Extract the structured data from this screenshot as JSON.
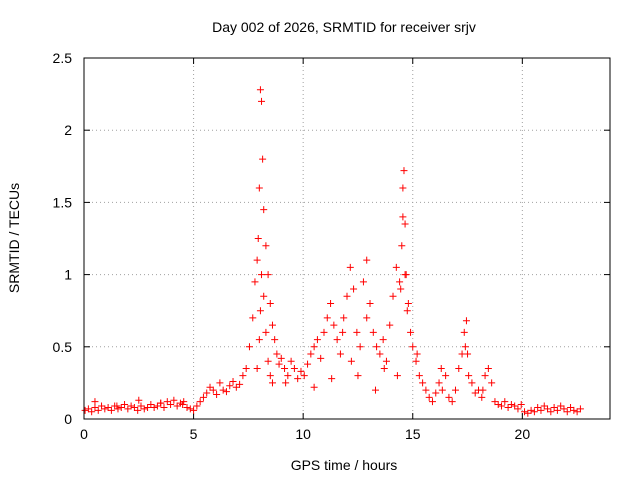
{
  "chart_data": {
    "type": "scatter",
    "title": "Day 002 of 2026, SRMTID for receiver srjv",
    "xlabel": "GPS time / hours",
    "ylabel": "SRMTID / TECUs",
    "xlim": [
      0,
      24
    ],
    "ylim": [
      0,
      2.5
    ],
    "xticks": [
      0,
      5,
      10,
      15,
      20
    ],
    "xtick_labels": [
      "0",
      "5",
      "10",
      "15",
      "20"
    ],
    "yticks": [
      0,
      0.5,
      1,
      1.5,
      2,
      2.5
    ],
    "ytick_labels": [
      "0",
      "0.5",
      "1",
      "1.5",
      "2",
      "2.5"
    ],
    "grid": true,
    "marker": "+",
    "series": [
      {
        "name": "SRMTID",
        "color": "#ff0000",
        "x": [
          0.05,
          0.2,
          0.35,
          0.5,
          0.65,
          0.8,
          0.95,
          1.1,
          1.25,
          1.4,
          1.55,
          1.7,
          1.85,
          2.0,
          2.15,
          2.3,
          2.45,
          2.6,
          2.75,
          2.9,
          3.05,
          3.2,
          3.35,
          3.5,
          3.65,
          3.8,
          3.95,
          4.1,
          4.25,
          4.4,
          4.55,
          4.7,
          4.85,
          5.0,
          5.15,
          5.3,
          5.45,
          5.6,
          5.75,
          5.9,
          6.05,
          6.2,
          6.35,
          6.5,
          6.65,
          6.8,
          6.95,
          7.1,
          7.25,
          7.4,
          7.55,
          7.7,
          7.8,
          7.9,
          7.95,
          8.0,
          8.05,
          8.1,
          8.15,
          8.2,
          8.3,
          8.4,
          8.5,
          8.6,
          8.7,
          8.8,
          8.9,
          9.0,
          9.15,
          9.3,
          9.45,
          9.6,
          9.75,
          9.9,
          10.05,
          10.2,
          10.35,
          10.5,
          10.65,
          10.8,
          10.95,
          11.1,
          11.25,
          11.4,
          11.55,
          11.7,
          11.85,
          12.0,
          12.15,
          12.3,
          12.45,
          12.6,
          12.75,
          12.9,
          13.05,
          13.2,
          13.35,
          13.5,
          13.65,
          13.8,
          13.95,
          14.1,
          14.25,
          14.4,
          14.5,
          14.55,
          14.6,
          14.65,
          14.7,
          14.8,
          14.9,
          15.0,
          15.15,
          15.3,
          15.45,
          15.6,
          15.75,
          15.9,
          16.05,
          16.2,
          16.35,
          16.5,
          16.65,
          16.8,
          16.95,
          17.1,
          17.25,
          17.35,
          17.45,
          17.55,
          17.7,
          17.85,
          18.0,
          18.15,
          18.3,
          18.45,
          18.6,
          18.75,
          18.9,
          19.05,
          19.2,
          19.35,
          19.5,
          19.65,
          19.8,
          19.95,
          20.1,
          20.25,
          20.4,
          20.55,
          20.7,
          20.85,
          21.0,
          21.15,
          21.3,
          21.45,
          21.6,
          21.75,
          21.9,
          22.05,
          22.2,
          22.35,
          22.5,
          22.65,
          0.5,
          1.5,
          2.5,
          3.5,
          4.5,
          7.9,
          8.0,
          8.05,
          8.1,
          8.2,
          8.3,
          8.4,
          8.5,
          8.6,
          9.2,
          10.5,
          11.3,
          11.8,
          12.2,
          12.5,
          12.9,
          13.3,
          13.7,
          14.3,
          14.45,
          14.55,
          14.65,
          14.75,
          15.2,
          16.3,
          17.4,
          17.5,
          18.2
        ],
        "y": [
          0.06,
          0.07,
          0.05,
          0.08,
          0.06,
          0.09,
          0.07,
          0.08,
          0.06,
          0.09,
          0.07,
          0.08,
          0.1,
          0.07,
          0.09,
          0.08,
          0.06,
          0.09,
          0.07,
          0.08,
          0.1,
          0.08,
          0.09,
          0.11,
          0.08,
          0.12,
          0.1,
          0.13,
          0.09,
          0.11,
          0.12,
          0.08,
          0.07,
          0.06,
          0.09,
          0.12,
          0.15,
          0.18,
          0.22,
          0.2,
          0.17,
          0.25,
          0.2,
          0.19,
          0.23,
          0.26,
          0.22,
          0.24,
          0.3,
          0.35,
          0.5,
          0.7,
          0.95,
          1.1,
          1.25,
          1.6,
          2.28,
          2.2,
          1.8,
          1.45,
          1.2,
          1.0,
          0.8,
          0.65,
          0.55,
          0.45,
          0.38,
          0.42,
          0.35,
          0.3,
          0.4,
          0.35,
          0.28,
          0.33,
          0.3,
          0.38,
          0.45,
          0.5,
          0.55,
          0.42,
          0.6,
          0.7,
          0.8,
          0.65,
          0.55,
          0.45,
          0.7,
          0.85,
          1.05,
          0.9,
          0.6,
          0.5,
          0.95,
          1.1,
          0.8,
          0.6,
          0.5,
          0.45,
          0.55,
          0.4,
          0.65,
          0.85,
          1.05,
          0.95,
          1.2,
          1.6,
          1.72,
          1.35,
          1.0,
          0.8,
          0.6,
          0.5,
          0.4,
          0.3,
          0.25,
          0.2,
          0.15,
          0.12,
          0.18,
          0.25,
          0.2,
          0.3,
          0.15,
          0.12,
          0.2,
          0.35,
          0.45,
          0.6,
          0.68,
          0.3,
          0.25,
          0.18,
          0.2,
          0.15,
          0.3,
          0.35,
          0.25,
          0.12,
          0.1,
          0.09,
          0.12,
          0.08,
          0.1,
          0.09,
          0.07,
          0.1,
          0.05,
          0.04,
          0.06,
          0.05,
          0.08,
          0.06,
          0.09,
          0.07,
          0.05,
          0.08,
          0.06,
          0.09,
          0.07,
          0.05,
          0.08,
          0.06,
          0.05,
          0.07,
          0.12,
          0.09,
          0.13,
          0.11,
          0.1,
          0.35,
          0.55,
          0.75,
          1.0,
          0.85,
          0.6,
          0.4,
          0.3,
          0.25,
          0.25,
          0.22,
          0.28,
          0.6,
          0.4,
          0.3,
          0.7,
          0.2,
          0.35,
          0.3,
          0.9,
          1.4,
          1.0,
          0.75,
          0.45,
          0.35,
          0.5,
          0.45,
          0.2
        ]
      }
    ]
  }
}
